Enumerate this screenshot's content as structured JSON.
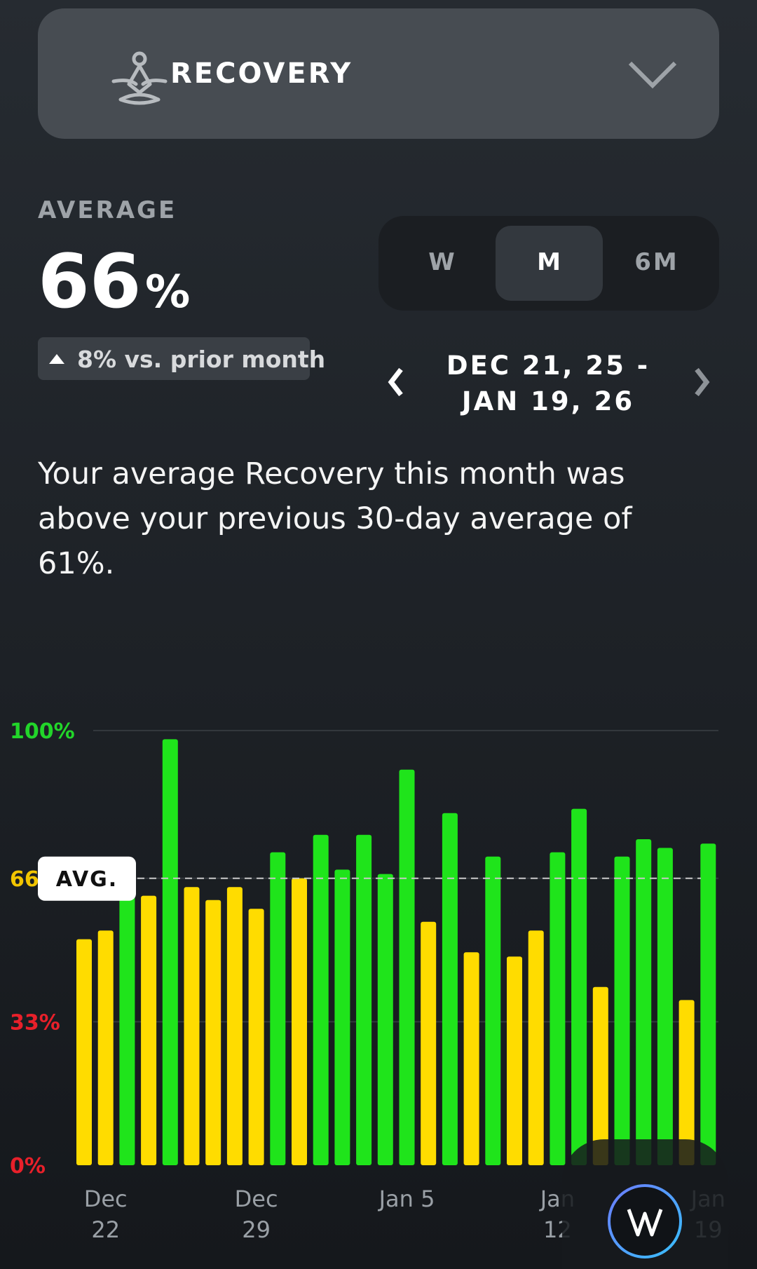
{
  "header": {
    "title": "RECOVERY"
  },
  "stats": {
    "label": "AVERAGE",
    "value": 66,
    "unit": "%",
    "change": "8% vs. prior month"
  },
  "range_selector": {
    "options": [
      "W",
      "M",
      "6M"
    ],
    "selected": "M"
  },
  "date_range": "DEC 21, 25 - JAN 19, 26",
  "summary": "Your average Recovery this month was above your previous 30-day average of 61%.",
  "chart_data": {
    "type": "bar",
    "categories": [
      null,
      "Dec 22",
      null,
      null,
      null,
      null,
      null,
      null,
      "Dec 29",
      null,
      null,
      null,
      null,
      null,
      null,
      "Jan 5",
      null,
      null,
      null,
      null,
      null,
      null,
      "Jan 12",
      null,
      null,
      null,
      null,
      null,
      null,
      "Jan 19"
    ],
    "values": [
      52,
      54,
      68,
      62,
      98,
      64,
      61,
      64,
      59,
      72,
      66,
      76,
      68,
      76,
      67,
      91,
      56,
      81,
      49,
      71,
      48,
      54,
      72,
      82,
      41,
      71,
      75,
      73,
      38,
      74
    ],
    "bar_colors": [
      "#ffdc00",
      "#ffdc00",
      "#1fe41b",
      "#ffdc00",
      "#1fe41b",
      "#ffdc00",
      "#ffdc00",
      "#ffdc00",
      "#ffdc00",
      "#1fe41b",
      "#ffdc00",
      "#1fe41b",
      "#1fe41b",
      "#1fe41b",
      "#1fe41b",
      "#1fe41b",
      "#ffdc00",
      "#1fe41b",
      "#ffdc00",
      "#1fe41b",
      "#ffdc00",
      "#ffdc00",
      "#1fe41b",
      "#1fe41b",
      "#ffdc00",
      "#1fe41b",
      "#1fe41b",
      "#1fe41b",
      "#ffdc00",
      "#1fe41b"
    ],
    "ylim": [
      0,
      100
    ],
    "yticks": [
      {
        "value": 0,
        "label": "0%"
      },
      {
        "value": 33,
        "label": "33%"
      },
      {
        "value": 66,
        "label": "66"
      },
      {
        "value": 100,
        "label": "100%"
      }
    ],
    "ytick_colors": [
      "#e8202a",
      "#e8202a",
      "#f2c500",
      "#22d52a"
    ],
    "average": 66,
    "average_label": "AVG."
  }
}
